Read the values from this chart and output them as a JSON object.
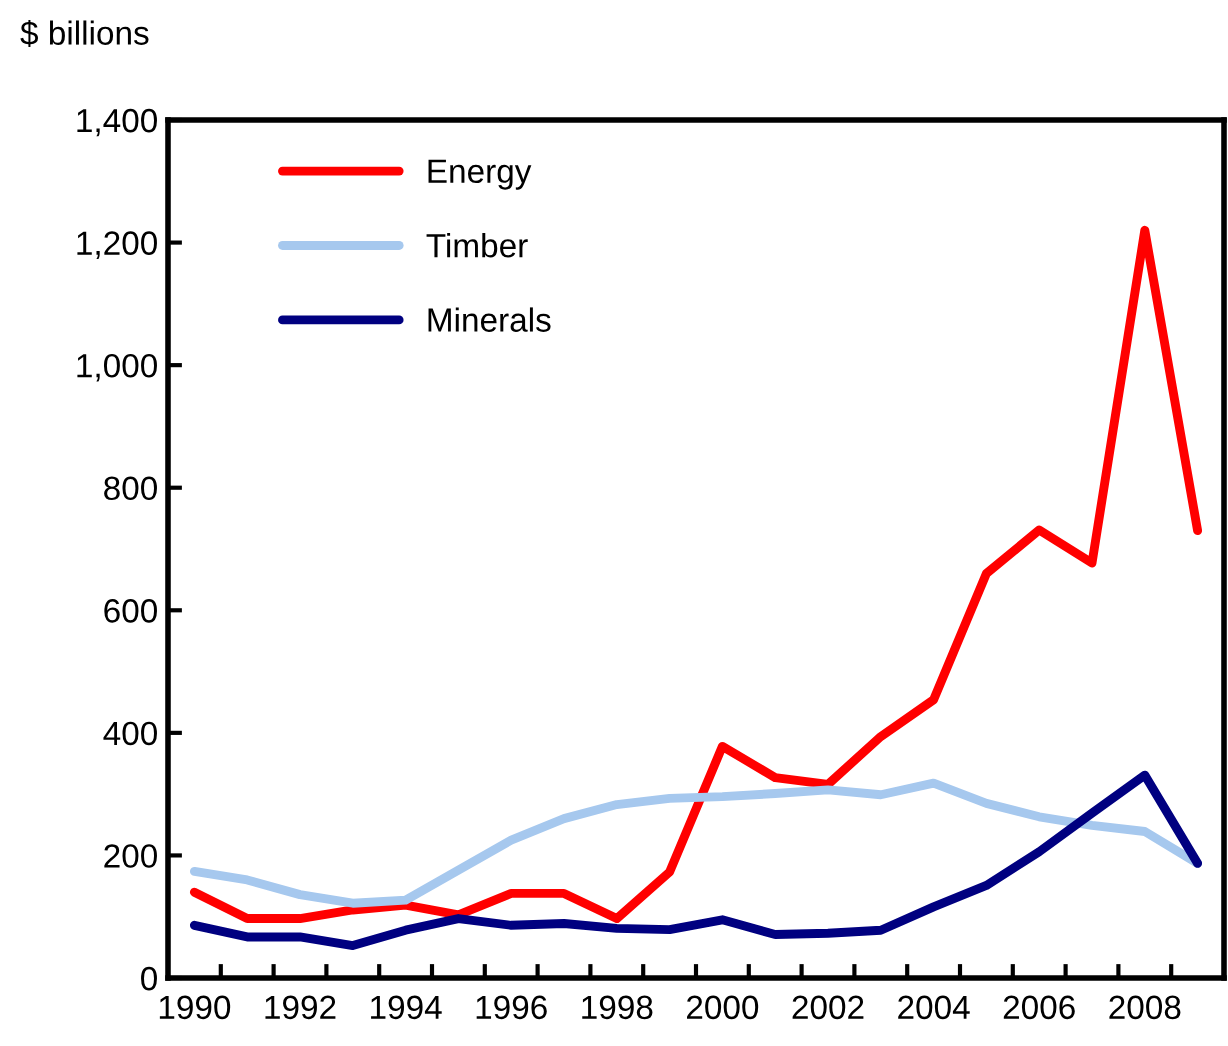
{
  "chart_data": {
    "type": "line",
    "ylabel": "$ billions",
    "categories": [
      "1990",
      null,
      "1992",
      null,
      "1994",
      null,
      "1996",
      null,
      "1998",
      null,
      "2000",
      null,
      "2002",
      null,
      "2004",
      null,
      "2006",
      null,
      "2008",
      null
    ],
    "series": [
      {
        "name": "Energy",
        "color": "#ff0000",
        "values": [
          140,
          97,
          97,
          111,
          119,
          103,
          138,
          138,
          97,
          173,
          378,
          327,
          316,
          394,
          454,
          660,
          731,
          677,
          1220,
          730
        ]
      },
      {
        "name": "Timber",
        "color": "#a6c8ee",
        "values": [
          174,
          160,
          136,
          122,
          127,
          176,
          225,
          260,
          283,
          293,
          296,
          301,
          307,
          299,
          318,
          285,
          263,
          249,
          239,
          187
        ]
      },
      {
        "name": "Minerals",
        "color": "#000080",
        "values": [
          86,
          67,
          67,
          53,
          78,
          97,
          86,
          89,
          81,
          79,
          95,
          71,
          73,
          78,
          116,
          151,
          206,
          269,
          331,
          187
        ]
      }
    ],
    "ylim": [
      0,
      1400
    ],
    "yticks": [
      0,
      200,
      400,
      600,
      800,
      {
        "value": 1000,
        "label": "1,000"
      },
      {
        "value": 1200,
        "label": "1,200"
      },
      {
        "value": 1400,
        "label": "1,400"
      }
    ],
    "grid": false,
    "legend": "top left",
    "marker": "none",
    "line_style": "solid"
  }
}
